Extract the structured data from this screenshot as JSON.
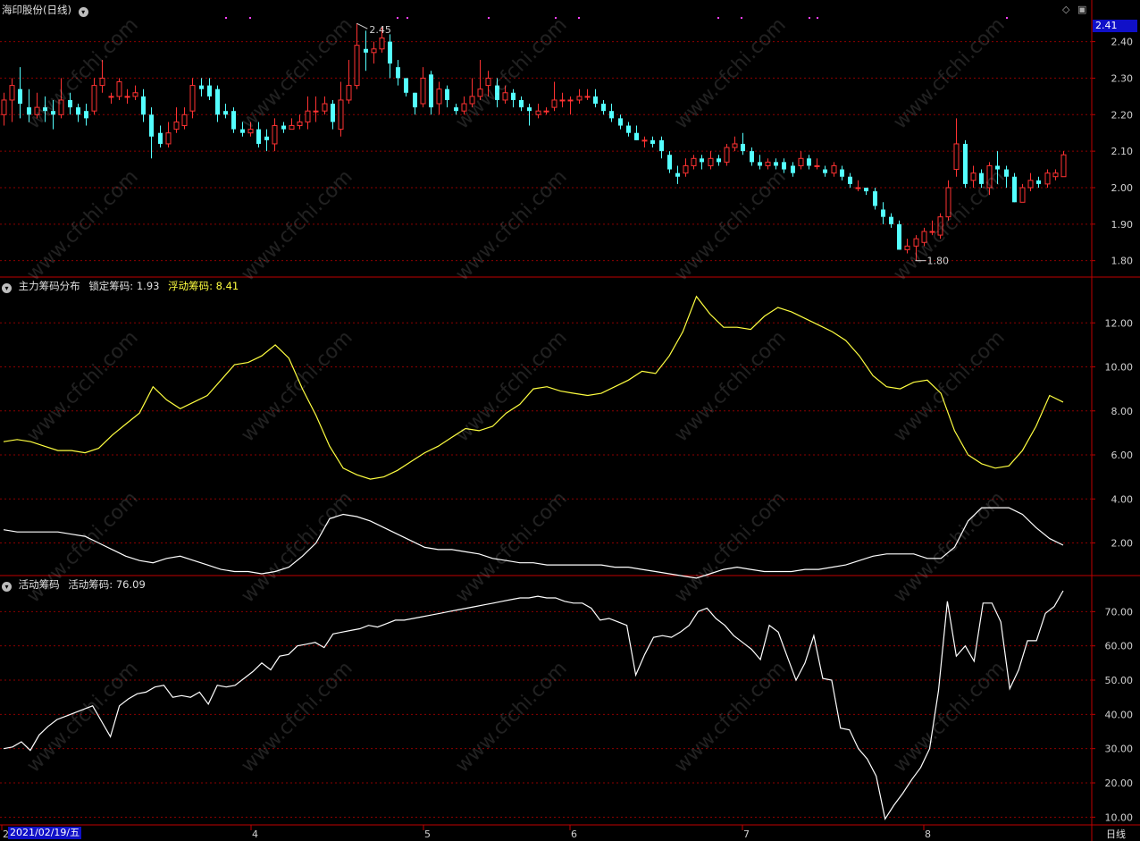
{
  "header_main": {
    "title": "海印股份(日线)"
  },
  "header_chip": {
    "name": "主力筹码分布",
    "k1": "锁定筹码:",
    "v1": "1.93",
    "k2": "浮动筹码:",
    "v2": "8.41"
  },
  "header_active": {
    "name": "活动筹码",
    "k1": "活动筹码:",
    "v1": "76.09"
  },
  "current_price": "2.41",
  "date_label": "2021/02/19/五",
  "period_label": "日线",
  "watermark": "www.cfchi.com",
  "colors": {
    "up": "#ff3232",
    "down": "#54ffff",
    "grid": "#8c0000",
    "border": "#c00000",
    "float_line": "#ffff40",
    "lock_line": "#ffffff"
  },
  "chart_data": [
    {
      "type": "candlestick",
      "title": "海印股份(日线)",
      "ylim": [
        1.76,
        2.47
      ],
      "yticks": [
        "2.40",
        "2.30",
        "2.20",
        "2.10",
        "2.00",
        "1.90",
        "1.80"
      ],
      "xticks": [
        "2",
        "4",
        "5",
        "6",
        "7",
        "8"
      ],
      "annotations": {
        "high": "2.45",
        "low": "1.80"
      },
      "ohlc": [
        [
          2.2,
          2.24,
          2.26,
          2.17
        ],
        [
          2.24,
          2.28,
          2.3,
          2.18
        ],
        [
          2.27,
          2.23,
          2.33,
          2.19
        ],
        [
          2.22,
          2.2,
          2.27,
          2.18
        ],
        [
          2.2,
          2.22,
          2.26,
          2.19
        ],
        [
          2.22,
          2.21,
          2.25,
          2.18
        ],
        [
          2.21,
          2.2,
          2.24,
          2.16
        ],
        [
          2.2,
          2.24,
          2.3,
          2.19
        ],
        [
          2.24,
          2.22,
          2.26,
          2.2
        ],
        [
          2.22,
          2.2,
          2.23,
          2.18
        ],
        [
          2.21,
          2.19,
          2.23,
          2.17
        ],
        [
          2.21,
          2.28,
          2.3,
          2.2
        ],
        [
          2.28,
          2.3,
          2.35,
          2.26
        ],
        [
          2.25,
          2.25,
          2.26,
          2.23
        ],
        [
          2.25,
          2.29,
          2.3,
          2.24
        ],
        [
          2.25,
          2.25,
          2.27,
          2.23
        ],
        [
          2.25,
          2.26,
          2.28,
          2.24
        ],
        [
          2.25,
          2.2,
          2.27,
          2.18
        ],
        [
          2.2,
          2.14,
          2.22,
          2.08
        ],
        [
          2.15,
          2.12,
          2.17,
          2.11
        ],
        [
          2.12,
          2.15,
          2.18,
          2.11
        ],
        [
          2.16,
          2.18,
          2.22,
          2.15
        ],
        [
          2.17,
          2.2,
          2.22,
          2.16
        ],
        [
          2.21,
          2.28,
          2.3,
          2.19
        ],
        [
          2.28,
          2.27,
          2.3,
          2.25
        ],
        [
          2.28,
          2.25,
          2.3,
          2.24
        ],
        [
          2.27,
          2.2,
          2.28,
          2.18
        ],
        [
          2.21,
          2.2,
          2.23,
          2.19
        ],
        [
          2.21,
          2.16,
          2.22,
          2.15
        ],
        [
          2.16,
          2.15,
          2.18,
          2.14
        ],
        [
          2.15,
          2.16,
          2.18,
          2.14
        ],
        [
          2.16,
          2.12,
          2.18,
          2.11
        ],
        [
          2.14,
          2.13,
          2.16,
          2.1
        ],
        [
          2.12,
          2.17,
          2.19,
          2.1
        ],
        [
          2.17,
          2.16,
          2.18,
          2.15
        ],
        [
          2.16,
          2.17,
          2.19,
          2.16
        ],
        [
          2.17,
          2.18,
          2.2,
          2.16
        ],
        [
          2.18,
          2.21,
          2.25,
          2.16
        ],
        [
          2.21,
          2.21,
          2.25,
          2.18
        ],
        [
          2.21,
          2.23,
          2.25,
          2.2
        ],
        [
          2.23,
          2.18,
          2.24,
          2.16
        ],
        [
          2.16,
          2.24,
          2.29,
          2.14
        ],
        [
          2.24,
          2.28,
          2.35,
          2.23
        ],
        [
          2.28,
          2.39,
          2.45,
          2.27
        ],
        [
          2.38,
          2.37,
          2.43,
          2.32
        ],
        [
          2.37,
          2.38,
          2.4,
          2.34
        ],
        [
          2.38,
          2.41,
          2.44,
          2.37
        ],
        [
          2.4,
          2.34,
          2.42,
          2.3
        ],
        [
          2.33,
          2.3,
          2.35,
          2.28
        ],
        [
          2.3,
          2.26,
          2.3,
          2.25
        ],
        [
          2.26,
          2.22,
          2.26,
          2.2
        ],
        [
          2.23,
          2.3,
          2.33,
          2.22
        ],
        [
          2.31,
          2.22,
          2.32,
          2.2
        ],
        [
          2.23,
          2.27,
          2.29,
          2.2
        ],
        [
          2.27,
          2.24,
          2.28,
          2.22
        ],
        [
          2.22,
          2.21,
          2.23,
          2.2
        ],
        [
          2.21,
          2.23,
          2.25,
          2.2
        ],
        [
          2.23,
          2.25,
          2.3,
          2.22
        ],
        [
          2.25,
          2.27,
          2.35,
          2.24
        ],
        [
          2.28,
          2.3,
          2.32,
          2.25
        ],
        [
          2.28,
          2.24,
          2.3,
          2.22
        ],
        [
          2.24,
          2.26,
          2.28,
          2.23
        ],
        [
          2.26,
          2.24,
          2.27,
          2.22
        ],
        [
          2.24,
          2.22,
          2.25,
          2.21
        ],
        [
          2.22,
          2.21,
          2.23,
          2.17
        ],
        [
          2.2,
          2.21,
          2.23,
          2.19
        ],
        [
          2.21,
          2.21,
          2.22,
          2.2
        ],
        [
          2.22,
          2.24,
          2.29,
          2.21
        ],
        [
          2.24,
          2.24,
          2.26,
          2.22
        ],
        [
          2.24,
          2.24,
          2.25,
          2.2
        ],
        [
          2.24,
          2.25,
          2.27,
          2.23
        ],
        [
          2.25,
          2.25,
          2.27,
          2.24
        ],
        [
          2.25,
          2.23,
          2.27,
          2.22
        ],
        [
          2.23,
          2.21,
          2.24,
          2.2
        ],
        [
          2.21,
          2.19,
          2.23,
          2.18
        ],
        [
          2.19,
          2.17,
          2.2,
          2.16
        ],
        [
          2.17,
          2.15,
          2.18,
          2.14
        ],
        [
          2.15,
          2.13,
          2.17,
          2.13
        ],
        [
          2.13,
          2.13,
          2.14,
          2.11
        ],
        [
          2.13,
          2.12,
          2.14,
          2.11
        ],
        [
          2.13,
          2.1,
          2.14,
          2.08
        ],
        [
          2.09,
          2.05,
          2.1,
          2.04
        ],
        [
          2.04,
          2.03,
          2.06,
          2.01
        ],
        [
          2.04,
          2.06,
          2.08,
          2.03
        ],
        [
          2.06,
          2.08,
          2.09,
          2.05
        ],
        [
          2.08,
          2.07,
          2.09,
          2.05
        ],
        [
          2.06,
          2.08,
          2.1,
          2.05
        ],
        [
          2.08,
          2.07,
          2.09,
          2.06
        ],
        [
          2.07,
          2.11,
          2.12,
          2.06
        ],
        [
          2.11,
          2.12,
          2.14,
          2.1
        ],
        [
          2.12,
          2.1,
          2.15,
          2.09
        ],
        [
          2.1,
          2.07,
          2.11,
          2.06
        ],
        [
          2.07,
          2.06,
          2.09,
          2.05
        ],
        [
          2.06,
          2.07,
          2.08,
          2.05
        ],
        [
          2.07,
          2.06,
          2.08,
          2.05
        ],
        [
          2.07,
          2.05,
          2.08,
          2.04
        ],
        [
          2.06,
          2.04,
          2.07,
          2.03
        ],
        [
          2.06,
          2.08,
          2.1,
          2.05
        ],
        [
          2.08,
          2.06,
          2.09,
          2.05
        ],
        [
          2.06,
          2.06,
          2.08,
          2.05
        ],
        [
          2.05,
          2.04,
          2.06,
          2.03
        ],
        [
          2.04,
          2.06,
          2.07,
          2.03
        ],
        [
          2.05,
          2.03,
          2.06,
          2.02
        ],
        [
          2.03,
          2.01,
          2.04,
          2.0
        ],
        [
          2.0,
          2.0,
          2.02,
          1.99
        ],
        [
          2.0,
          1.99,
          2.0,
          1.98
        ],
        [
          1.99,
          1.95,
          2.0,
          1.94
        ],
        [
          1.94,
          1.92,
          1.96,
          1.9
        ],
        [
          1.92,
          1.9,
          1.93,
          1.89
        ],
        [
          1.9,
          1.83,
          1.91,
          1.83
        ],
        [
          1.83,
          1.84,
          1.86,
          1.82
        ],
        [
          1.84,
          1.86,
          1.87,
          1.8
        ],
        [
          1.85,
          1.88,
          1.89,
          1.84
        ],
        [
          1.88,
          1.88,
          1.91,
          1.87
        ],
        [
          1.87,
          1.92,
          1.93,
          1.86
        ],
        [
          1.92,
          2.0,
          2.02,
          1.91
        ],
        [
          2.05,
          2.12,
          2.19,
          2.03
        ],
        [
          2.12,
          2.01,
          2.13,
          2.0
        ],
        [
          2.02,
          2.04,
          2.06,
          2.0
        ],
        [
          2.04,
          2.01,
          2.05,
          2.0
        ],
        [
          2.0,
          2.06,
          2.07,
          1.98
        ],
        [
          2.06,
          2.05,
          2.1,
          2.01
        ],
        [
          2.05,
          2.03,
          2.06,
          2.0
        ],
        [
          2.03,
          1.96,
          2.04,
          1.96
        ],
        [
          1.96,
          2.0,
          2.01,
          1.96
        ],
        [
          2.0,
          2.02,
          2.04,
          1.99
        ],
        [
          2.02,
          2.01,
          2.03,
          2.0
        ],
        [
          2.01,
          2.04,
          2.05,
          2.0
        ],
        [
          2.03,
          2.04,
          2.05,
          2.02
        ],
        [
          2.03,
          2.09,
          2.1,
          2.03
        ]
      ]
    },
    {
      "type": "line",
      "title": "主力筹码分布",
      "ylim": [
        0.6,
        14.0
      ],
      "yticks": [
        "12.00",
        "10.00",
        "8.00",
        "6.00",
        "4.00",
        "2.00"
      ],
      "series": [
        {
          "name": "浮动筹码",
          "values": [
            6.6,
            6.7,
            6.6,
            6.4,
            6.2,
            6.2,
            6.1,
            6.3,
            6.9,
            7.4,
            7.9,
            9.1,
            8.5,
            8.1,
            8.4,
            8.7,
            9.4,
            10.1,
            10.2,
            10.5,
            11.0,
            10.4,
            9.0,
            7.8,
            6.4,
            5.4,
            5.1,
            4.9,
            5.0,
            5.3,
            5.7,
            6.1,
            6.4,
            6.8,
            7.2,
            7.1,
            7.3,
            7.9,
            8.3,
            9.0,
            9.1,
            8.9,
            8.8,
            8.7,
            8.8,
            9.1,
            9.4,
            9.8,
            9.7,
            10.5,
            11.6,
            13.2,
            12.4,
            11.8,
            11.8,
            11.7,
            12.3,
            12.7,
            12.5,
            12.2,
            11.9,
            11.6,
            11.2,
            10.5,
            9.6,
            9.1,
            9.0,
            9.3,
            9.4,
            8.8,
            7.1,
            6.0,
            5.6,
            5.4,
            5.5,
            6.2,
            7.3,
            8.7,
            8.4
          ]
        },
        {
          "name": "锁定筹码",
          "values": [
            2.6,
            2.5,
            2.5,
            2.5,
            2.5,
            2.4,
            2.3,
            2.0,
            1.7,
            1.4,
            1.2,
            1.1,
            1.3,
            1.4,
            1.2,
            1.0,
            0.8,
            0.7,
            0.7,
            0.6,
            0.7,
            0.9,
            1.4,
            2.0,
            3.1,
            3.3,
            3.2,
            3.0,
            2.7,
            2.4,
            2.1,
            1.8,
            1.7,
            1.7,
            1.6,
            1.5,
            1.3,
            1.2,
            1.1,
            1.1,
            1.0,
            1.0,
            1.0,
            1.0,
            1.0,
            0.9,
            0.9,
            0.8,
            0.7,
            0.6,
            0.5,
            0.4,
            0.6,
            0.8,
            0.9,
            0.8,
            0.7,
            0.7,
            0.7,
            0.8,
            0.8,
            0.9,
            1.0,
            1.2,
            1.4,
            1.5,
            1.5,
            1.5,
            1.3,
            1.3,
            1.8,
            3.0,
            3.6,
            3.6,
            3.6,
            3.3,
            2.7,
            2.2,
            1.9
          ]
        }
      ]
    },
    {
      "type": "line",
      "title": "活动筹码",
      "ylim": [
        8,
        80
      ],
      "yticks": [
        "70.00",
        "60.00",
        "50.00",
        "40.00",
        "30.00",
        "20.00",
        "10.00"
      ],
      "series": [
        {
          "name": "活动筹码",
          "values": [
            30.0,
            30.5,
            32.0,
            29.5,
            34.0,
            36.5,
            38.5,
            39.5,
            40.5,
            41.5,
            42.5,
            38.0,
            33.5,
            42.5,
            44.5,
            46.0,
            46.5,
            48.0,
            48.5,
            45.0,
            45.5,
            45.0,
            46.5,
            43.0,
            48.5,
            48.0,
            48.5,
            50.5,
            52.5,
            55.0,
            53.0,
            57.0,
            57.5,
            60.0,
            60.5,
            61.0,
            59.5,
            63.5,
            64.0,
            64.5,
            65.0,
            66.0,
            65.5,
            66.5,
            67.5,
            67.5,
            68.0,
            68.5,
            69.0,
            69.5,
            70.0,
            70.5,
            71.0,
            71.5,
            72.0,
            72.5,
            73.0,
            73.5,
            74.0,
            74.0,
            74.5,
            74.0,
            74.0,
            73.0,
            72.5,
            72.5,
            71.0,
            67.5,
            68.0,
            67.0,
            66.0,
            51.5,
            57.5,
            62.5,
            63.0,
            62.5,
            64.0,
            66.0,
            70.0,
            71.0,
            68.0,
            66.0,
            63.0,
            61.0,
            59.0,
            56.0,
            66.0,
            64.0,
            57.0,
            50.0,
            55.0,
            63.0,
            50.5,
            50.0,
            36.0,
            35.5,
            30.0,
            27.0,
            22.0,
            9.5,
            13.5,
            17.0,
            21.0,
            24.5,
            30.0,
            47.0,
            73.0,
            57.0,
            60.0,
            55.5,
            72.5,
            72.5,
            67.0,
            47.5,
            53.0,
            61.5,
            61.5,
            69.5,
            71.5,
            76.09
          ]
        }
      ]
    }
  ]
}
